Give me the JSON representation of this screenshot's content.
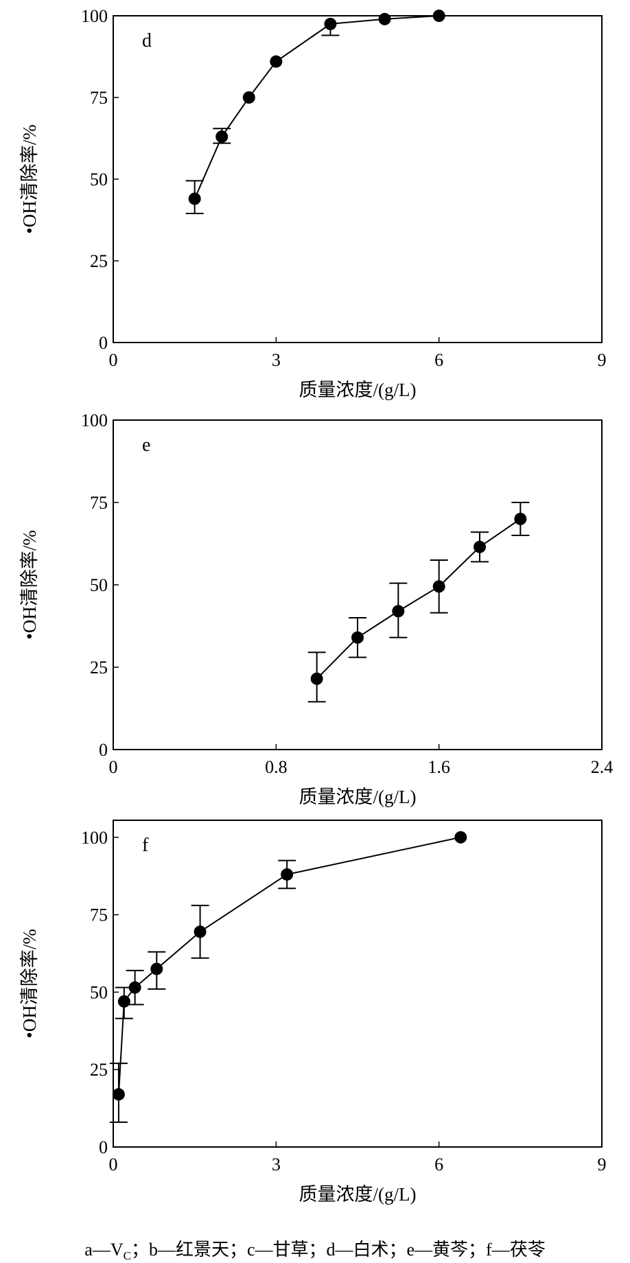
{
  "chart_data": [
    {
      "type": "line",
      "panel_label": "d",
      "xlabel": "质量浓度/(g/L)",
      "ylabel": "•OH清除率/%",
      "xlim": [
        0,
        9
      ],
      "ylim": [
        0,
        100
      ],
      "xticks": [
        "0",
        "3",
        "6",
        "9"
      ],
      "xtick_values": [
        0,
        3,
        6,
        9
      ],
      "yticks": [
        "0",
        "25",
        "50",
        "75",
        "100"
      ],
      "ytick_values": [
        0,
        25,
        50,
        75,
        100
      ],
      "x": [
        1.5,
        2,
        2.5,
        3,
        4,
        5,
        6
      ],
      "y": [
        44,
        63,
        75,
        86,
        97.5,
        99,
        100
      ],
      "err_upper": [
        49.5,
        65.5,
        null,
        null,
        null,
        null,
        null
      ],
      "err_lower": [
        39.5,
        61,
        null,
        null,
        94,
        null,
        null
      ]
    },
    {
      "type": "line",
      "panel_label": "e",
      "xlabel": "质量浓度/(g/L)",
      "ylabel": "•OH清除率/%",
      "xlim": [
        0,
        2.4
      ],
      "ylim": [
        0,
        100
      ],
      "xticks": [
        "0",
        "0.8",
        "1.6",
        "2.4"
      ],
      "xtick_values": [
        0,
        0.8,
        1.6,
        2.4
      ],
      "yticks": [
        "0",
        "25",
        "50",
        "75",
        "100"
      ],
      "ytick_values": [
        0,
        25,
        50,
        75,
        100
      ],
      "x": [
        1.0,
        1.2,
        1.4,
        1.6,
        1.8,
        2.0
      ],
      "y": [
        21.5,
        34,
        42,
        49.5,
        61.5,
        70
      ],
      "err_upper": [
        29.5,
        40,
        50.5,
        57.5,
        66,
        75
      ],
      "err_lower": [
        14.5,
        28,
        34,
        41.5,
        57,
        65
      ]
    },
    {
      "type": "line",
      "panel_label": "f",
      "xlabel": "质量浓度/(g/L)",
      "ylabel": "•OH清除率/%",
      "xlim": [
        0,
        9
      ],
      "ylim": [
        0,
        105.5
      ],
      "xticks": [
        "0",
        "3",
        "6",
        "9"
      ],
      "xtick_values": [
        0,
        3,
        6,
        9
      ],
      "yticks": [
        "0",
        "25",
        "50",
        "75",
        "100"
      ],
      "ytick_values": [
        0,
        25,
        50,
        75,
        100
      ],
      "x": [
        0.1,
        0.2,
        0.4,
        0.8,
        1.6,
        3.2,
        6.4
      ],
      "y": [
        17,
        47,
        51.5,
        57.5,
        69.5,
        88,
        100
      ],
      "err_upper": [
        27,
        51.5,
        57,
        63,
        78,
        92.5,
        null
      ],
      "err_lower": [
        8,
        41.5,
        46,
        51,
        61,
        83.5,
        null
      ]
    }
  ],
  "caption": {
    "a_prefix": "a—V",
    "a_sub": "C",
    "rest": "；b—红景天；c—甘草；d—白术；e—黄芩；f—茯苓"
  }
}
